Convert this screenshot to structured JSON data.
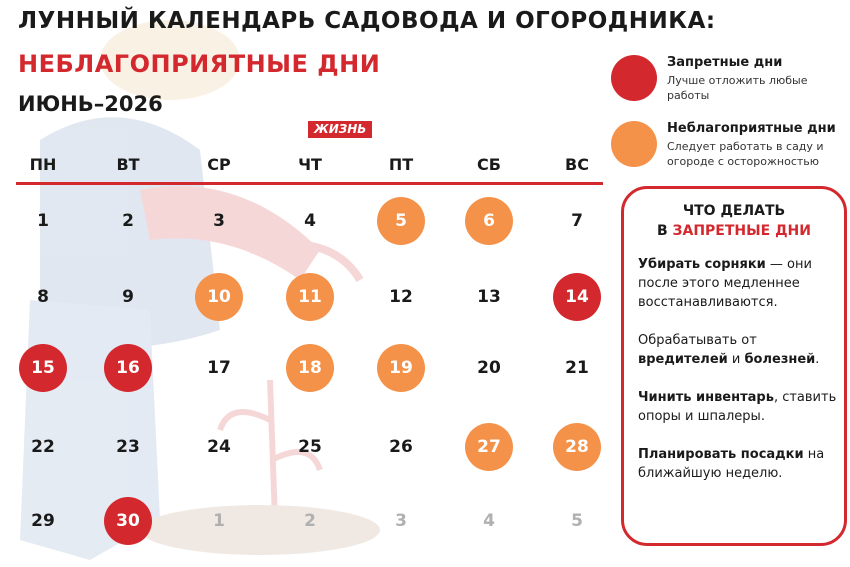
{
  "header": {
    "title": "ЛУННЫЙ КАЛЕНДАРЬ САДОВОДА И ОГОРОДНИКА:",
    "subtitle": "НЕБЛАГОПРИЯТНЫЕ ДНИ",
    "month": "ИЮНЬ–2026",
    "brand": "ЖИЗНЬ"
  },
  "colors": {
    "forbidden": "#d3292e",
    "unfavorable": "#f5924a",
    "accent": "#d3292e"
  },
  "weekdays": [
    "ПН",
    "ВТ",
    "СР",
    "ЧТ",
    "ПТ",
    "СБ",
    "ВС"
  ],
  "calendar": [
    [
      {
        "d": "1",
        "t": "normal"
      },
      {
        "d": "2",
        "t": "normal"
      },
      {
        "d": "3",
        "t": "normal"
      },
      {
        "d": "4",
        "t": "normal"
      },
      {
        "d": "5",
        "t": "unfavorable"
      },
      {
        "d": "6",
        "t": "unfavorable"
      },
      {
        "d": "7",
        "t": "normal"
      }
    ],
    [
      {
        "d": "8",
        "t": "normal"
      },
      {
        "d": "9",
        "t": "normal"
      },
      {
        "d": "10",
        "t": "unfavorable"
      },
      {
        "d": "11",
        "t": "unfavorable"
      },
      {
        "d": "12",
        "t": "normal"
      },
      {
        "d": "13",
        "t": "normal"
      },
      {
        "d": "14",
        "t": "forbidden"
      }
    ],
    [
      {
        "d": "15",
        "t": "forbidden"
      },
      {
        "d": "16",
        "t": "forbidden"
      },
      {
        "d": "17",
        "t": "normal"
      },
      {
        "d": "18",
        "t": "unfavorable"
      },
      {
        "d": "19",
        "t": "unfavorable"
      },
      {
        "d": "20",
        "t": "normal"
      },
      {
        "d": "21",
        "t": "normal"
      }
    ],
    [
      {
        "d": "22",
        "t": "normal"
      },
      {
        "d": "23",
        "t": "normal"
      },
      {
        "d": "24",
        "t": "normal"
      },
      {
        "d": "25",
        "t": "normal"
      },
      {
        "d": "26",
        "t": "normal"
      },
      {
        "d": "27",
        "t": "unfavorable"
      },
      {
        "d": "28",
        "t": "unfavorable"
      }
    ],
    [
      {
        "d": "29",
        "t": "normal"
      },
      {
        "d": "30",
        "t": "forbidden"
      },
      {
        "d": "1",
        "t": "other"
      },
      {
        "d": "2",
        "t": "other"
      },
      {
        "d": "3",
        "t": "other"
      },
      {
        "d": "4",
        "t": "other"
      },
      {
        "d": "5",
        "t": "other"
      }
    ]
  ],
  "legend": [
    {
      "title": "Запретные дни",
      "desc": "Лучше отложить любые работы",
      "color": "#d3292e"
    },
    {
      "title": "Неблагоприятные дни",
      "desc": "Следует работать в саду и огороде с осторожностью",
      "color": "#f5924a"
    }
  ],
  "panel": {
    "heading_line1": "ЧТО ДЕЛАТЬ",
    "heading_prefix": "В",
    "heading_red": "ЗАПРЕТНЫЕ ДНИ",
    "tip1_bold": "Убирать сорняки",
    "tip1_rest": " — они после этого медленнее восстанавливаются.",
    "tip2_start": "Обрабатывать от ",
    "tip2_bold1": "вредителей",
    "tip2_and": " и ",
    "tip2_bold2": "болезней",
    "tip2_end": ".",
    "tip3_bold": "Чинить инвентарь",
    "tip3_rest": ", ставить опоры и шпалеры.",
    "tip4_bold": "Планировать посадки",
    "tip4_rest": " на ближайшую неделю."
  }
}
